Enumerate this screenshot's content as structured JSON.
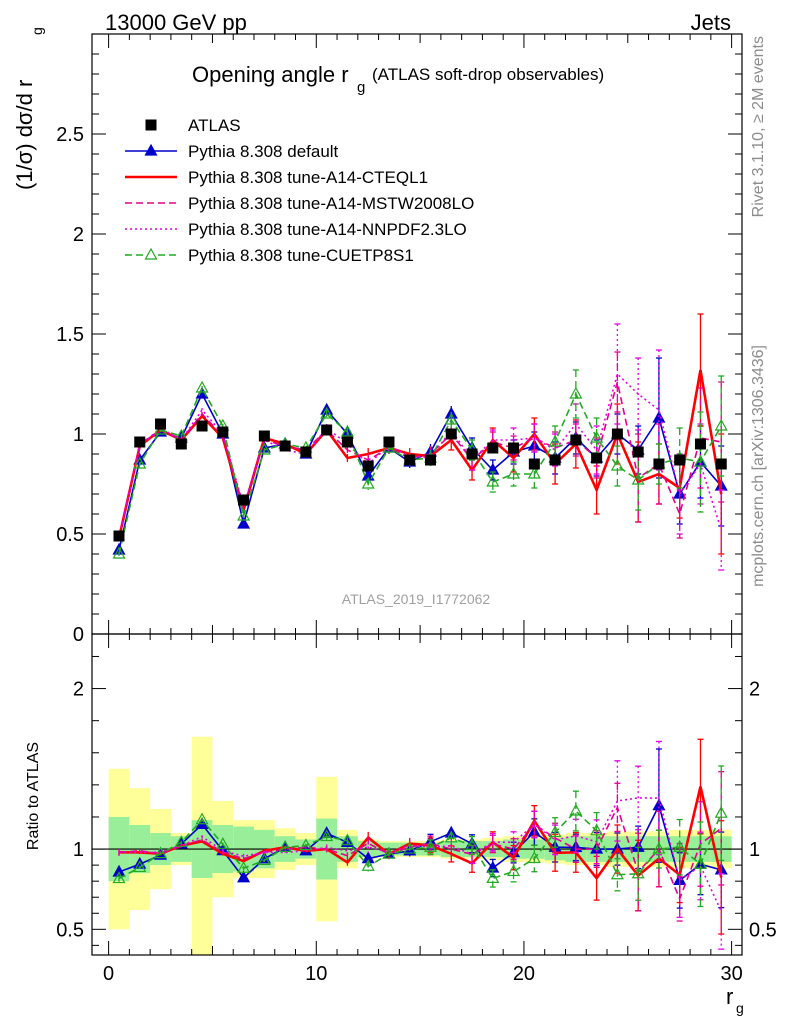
{
  "header": {
    "left": "13000 GeV pp",
    "right": "Jets",
    "analysis_id": "ATLAS_2019_I1772062",
    "side_top": "Rivet 3.1.10, ≥ 2M events",
    "side_bottom": "mcplots.cern.ch [arXiv:1306.3436]"
  },
  "chart_data": {
    "type": "line",
    "title_main": "Opening angle r",
    "title_sub": "g",
    "title_rest": "(ATLAS soft-drop observables)",
    "ylabel": "(1/σ) dσ/d r",
    "ylabel_sub": "g",
    "xlabel": "r",
    "xlabel_sub": "g",
    "ratio_ylabel": "Ratio to ATLAS",
    "xlim": [
      -0.8,
      30.5
    ],
    "ylim": [
      0,
      3.0
    ],
    "ratio_ylim": [
      0.34,
      2.34
    ],
    "xticks": [
      "0",
      "10",
      "20",
      "30"
    ],
    "yticks": [
      "0",
      "0.5",
      "1",
      "1.5",
      "2",
      "2.5"
    ],
    "ratio_yticks": [
      "0.5",
      "1",
      "2"
    ],
    "x": [
      0.5,
      1.5,
      2.5,
      3.5,
      4.5,
      5.5,
      6.5,
      7.5,
      8.5,
      9.5,
      10.5,
      11.5,
      12.5,
      13.5,
      14.5,
      15.5,
      16.5,
      17.5,
      18.5,
      19.5,
      20.5,
      21.5,
      22.5,
      23.5,
      24.5,
      25.5,
      26.5,
      27.5,
      28.5,
      29.5
    ],
    "data": {
      "name": "ATLAS",
      "values": [
        0.49,
        0.96,
        1.05,
        0.95,
        1.04,
        1.01,
        0.67,
        0.99,
        0.94,
        0.91,
        1.02,
        0.96,
        0.84,
        0.96,
        0.87,
        0.87,
        1.0,
        0.9,
        0.93,
        0.93,
        0.85,
        0.87,
        0.97,
        0.88,
        1.0,
        0.91,
        0.85,
        0.87,
        0.95,
        0.85
      ],
      "ratio_band_inner": [
        0.2,
        0.15,
        0.1,
        0.08,
        0.18,
        0.15,
        0.14,
        0.12,
        0.08,
        0.06,
        0.19,
        0.08,
        0.05,
        0.04,
        0.04,
        0.04,
        0.05,
        0.05,
        0.05,
        0.06,
        0.06,
        0.07,
        0.08,
        0.08,
        0.08,
        0.08,
        0.08,
        0.08,
        0.08,
        0.08
      ],
      "ratio_band_outer": [
        0.5,
        0.38,
        0.25,
        0.1,
        0.7,
        0.3,
        0.18,
        0.18,
        0.13,
        0.1,
        0.45,
        0.12,
        0.06,
        0.05,
        0.05,
        0.05,
        0.06,
        0.06,
        0.07,
        0.08,
        0.08,
        0.09,
        0.1,
        0.1,
        0.11,
        0.11,
        0.11,
        0.12,
        0.12,
        0.12
      ]
    },
    "series": [
      {
        "name": "Pythia 8.308 default",
        "color": "#0000cc",
        "style": "solid",
        "marker": "triangle-filled",
        "values": [
          0.42,
          0.87,
          1.01,
          0.98,
          1.2,
          1.0,
          0.55,
          0.93,
          0.95,
          0.9,
          1.12,
          1.0,
          0.79,
          0.93,
          0.86,
          0.91,
          1.1,
          0.93,
          0.82,
          0.91,
          0.94,
          0.88,
          0.98,
          0.88,
          1.0,
          0.92,
          1.08,
          0.7,
          0.86,
          0.74
        ],
        "err": [
          0.01,
          0.01,
          0.01,
          0.01,
          0.01,
          0.01,
          0.01,
          0.01,
          0.01,
          0.01,
          0.02,
          0.02,
          0.03,
          0.03,
          0.03,
          0.04,
          0.04,
          0.05,
          0.05,
          0.06,
          0.07,
          0.08,
          0.08,
          0.09,
          0.1,
          0.12,
          0.3,
          0.15,
          0.18,
          0.2
        ]
      },
      {
        "name": "Pythia 8.308 tune-A14-CTEQL1",
        "color": "#ff0000",
        "style": "solid-thick",
        "marker": "none",
        "values": [
          0.48,
          0.94,
          1.02,
          0.97,
          1.09,
          0.98,
          0.62,
          0.98,
          0.95,
          0.9,
          1.02,
          0.88,
          0.9,
          0.93,
          0.9,
          0.89,
          0.97,
          0.82,
          0.97,
          0.88,
          1.0,
          0.85,
          0.95,
          0.72,
          1.0,
          0.76,
          0.8,
          0.73,
          1.32,
          0.7
        ],
        "err": [
          0.01,
          0.01,
          0.01,
          0.01,
          0.01,
          0.01,
          0.01,
          0.01,
          0.01,
          0.01,
          0.02,
          0.02,
          0.03,
          0.03,
          0.03,
          0.04,
          0.05,
          0.05,
          0.06,
          0.07,
          0.08,
          0.1,
          0.12,
          0.12,
          0.15,
          0.2,
          0.15,
          0.15,
          0.28,
          0.3
        ]
      },
      {
        "name": "Pythia 8.308 tune-A14-MSTW2008LO",
        "color": "#e6008c",
        "style": "dashed",
        "marker": "none",
        "values": [
          0.48,
          0.95,
          1.02,
          0.97,
          1.1,
          0.99,
          0.63,
          0.97,
          0.94,
          0.92,
          1.02,
          0.92,
          0.87,
          0.93,
          0.88,
          0.9,
          1.0,
          0.87,
          0.96,
          0.93,
          0.98,
          0.93,
          0.97,
          0.88,
          1.26,
          0.78,
          0.85,
          0.6,
          0.98,
          0.96
        ],
        "err": [
          0.01,
          0.01,
          0.01,
          0.01,
          0.01,
          0.01,
          0.01,
          0.01,
          0.01,
          0.01,
          0.02,
          0.02,
          0.03,
          0.03,
          0.03,
          0.04,
          0.04,
          0.05,
          0.05,
          0.06,
          0.07,
          0.08,
          0.08,
          0.1,
          0.15,
          0.22,
          0.2,
          0.12,
          0.25,
          0.3
        ]
      },
      {
        "name": "Pythia 8.308 tune-A14-NNPDF2.3LO",
        "color": "#e600e6",
        "style": "dotted",
        "marker": "none",
        "values": [
          0.48,
          0.94,
          1.03,
          0.97,
          1.12,
          1.0,
          0.64,
          0.97,
          0.92,
          0.9,
          1.03,
          0.95,
          0.85,
          0.94,
          0.89,
          0.88,
          1.02,
          0.87,
          0.97,
          0.97,
          0.98,
          0.92,
          1.05,
          0.92,
          1.3,
          1.2,
          1.12,
          0.7,
          0.85,
          0.52
        ],
        "err": [
          0.01,
          0.01,
          0.01,
          0.01,
          0.01,
          0.01,
          0.01,
          0.01,
          0.01,
          0.01,
          0.02,
          0.02,
          0.03,
          0.03,
          0.03,
          0.04,
          0.04,
          0.05,
          0.05,
          0.06,
          0.07,
          0.08,
          0.1,
          0.12,
          0.25,
          0.18,
          0.3,
          0.2,
          0.2,
          0.2
        ]
      },
      {
        "name": "Pythia 8.308 tune-CUETP8S1",
        "color": "#22aa22",
        "style": "dashed",
        "marker": "triangle-open",
        "values": [
          0.4,
          0.85,
          1.02,
          0.99,
          1.23,
          1.04,
          0.59,
          0.92,
          0.95,
          0.93,
          1.1,
          1.01,
          0.75,
          0.93,
          0.87,
          0.88,
          1.07,
          0.92,
          0.76,
          0.8,
          0.8,
          0.96,
          1.2,
          0.98,
          0.84,
          0.77,
          0.85,
          0.88,
          0.86,
          1.04
        ],
        "err": [
          0.01,
          0.01,
          0.01,
          0.01,
          0.01,
          0.01,
          0.01,
          0.01,
          0.01,
          0.01,
          0.02,
          0.02,
          0.03,
          0.03,
          0.03,
          0.04,
          0.04,
          0.05,
          0.05,
          0.06,
          0.07,
          0.08,
          0.12,
          0.1,
          0.1,
          0.15,
          0.1,
          0.15,
          0.25,
          0.25
        ]
      }
    ],
    "colors": {
      "band_inner": "#99ee99",
      "band_outer": "#ffff99",
      "data": "#000000"
    },
    "legend_position": "top-left"
  }
}
